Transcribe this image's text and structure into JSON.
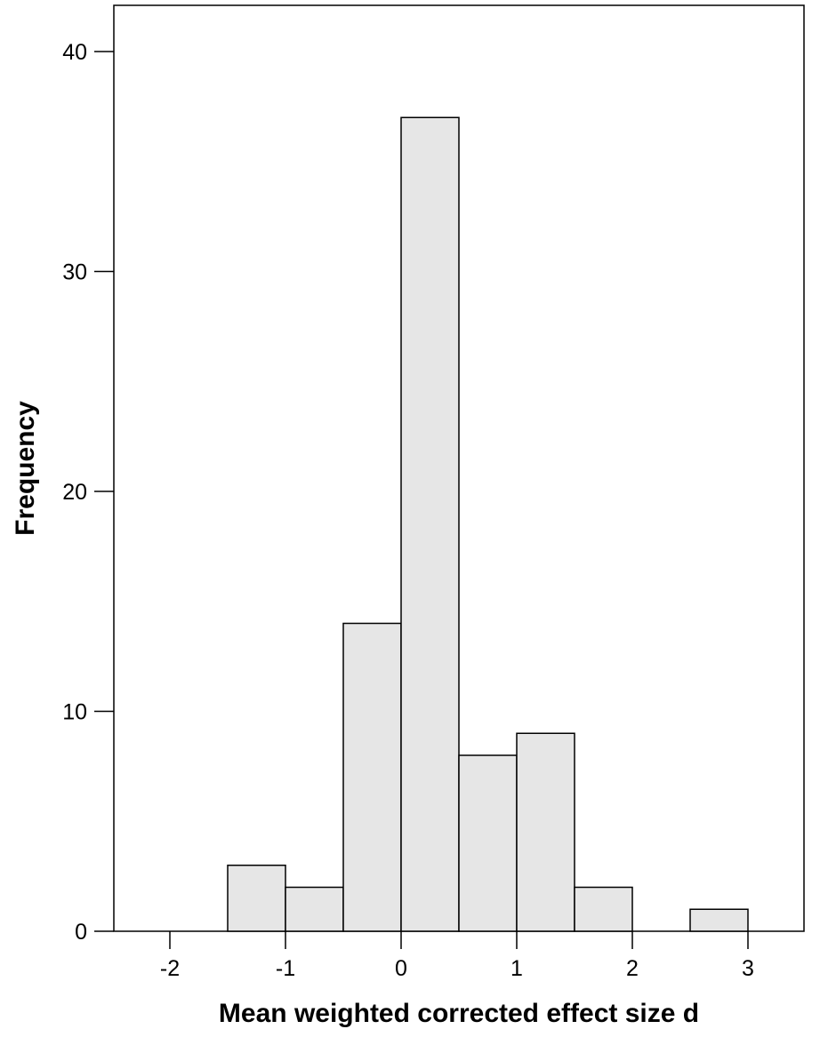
{
  "chart_data": {
    "type": "bar",
    "title": "",
    "xlabel": "Mean weighted corrected effect size d",
    "ylabel": "Frequency",
    "xlim": [
      -2.5,
      3.5
    ],
    "ylim": [
      0,
      42
    ],
    "x_ticks": [
      -2,
      -1,
      0,
      1,
      2,
      3
    ],
    "x_tick_labels": [
      "-2",
      "-1",
      "0",
      "1",
      "2",
      "3"
    ],
    "y_ticks": [
      0,
      10,
      20,
      30,
      40
    ],
    "y_tick_labels": [
      "0",
      "10",
      "20",
      "30",
      "40"
    ],
    "bin_width": 0.5,
    "bins": [
      {
        "start": -1.5,
        "end": -1.0,
        "count": 3
      },
      {
        "start": -1.0,
        "end": -0.5,
        "count": 2
      },
      {
        "start": -0.5,
        "end": 0.0,
        "count": 14
      },
      {
        "start": 0.0,
        "end": 0.5,
        "count": 37
      },
      {
        "start": 0.5,
        "end": 1.0,
        "count": 8
      },
      {
        "start": 1.0,
        "end": 1.5,
        "count": 9
      },
      {
        "start": 1.5,
        "end": 2.0,
        "count": 2
      },
      {
        "start": 2.5,
        "end": 3.0,
        "count": 1
      }
    ],
    "grid": false,
    "legend": "none",
    "colors": {
      "bar_fill": "#e6e6e6",
      "bar_stroke": "#000000",
      "axis": "#000000"
    }
  }
}
